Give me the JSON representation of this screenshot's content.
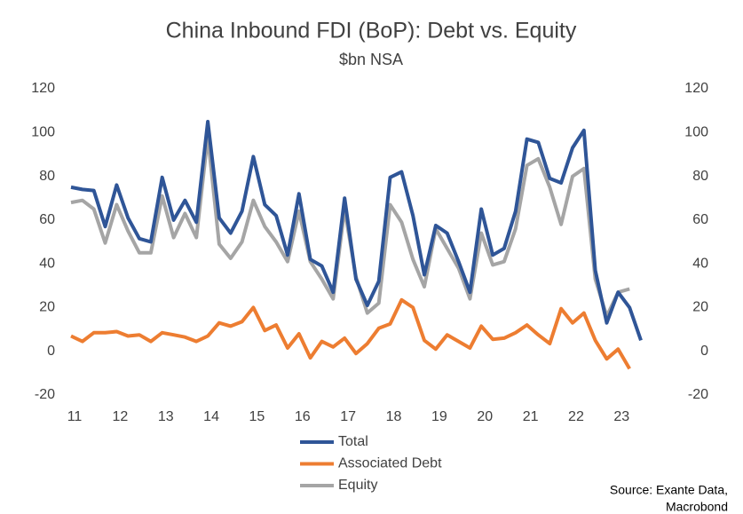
{
  "chart_data": {
    "type": "line",
    "title": "China Inbound FDI (BoP): Debt vs. Equity",
    "subtitle": "$bn NSA",
    "source": [
      "Source: Exante Data,",
      "Macrobond"
    ],
    "categories": [
      "11",
      null,
      null,
      null,
      "12",
      null,
      null,
      null,
      "13",
      null,
      null,
      null,
      "14",
      null,
      null,
      null,
      "15",
      null,
      null,
      null,
      "16",
      null,
      null,
      null,
      "17",
      null,
      null,
      null,
      "18",
      null,
      null,
      null,
      "19",
      null,
      null,
      null,
      "20",
      null,
      null,
      null,
      "21",
      null,
      null,
      null,
      "22",
      null,
      null,
      null,
      "23",
      null,
      null
    ],
    "series": [
      {
        "name": "Total",
        "color": "#2f5597",
        "values": [
          75,
          74,
          73.5,
          57,
          76,
          61,
          51.5,
          50,
          79.5,
          60,
          69,
          59,
          105,
          61,
          54,
          64,
          89,
          67,
          62,
          44,
          72,
          42,
          39,
          27,
          70,
          33,
          21,
          32,
          79.5,
          82,
          62,
          35,
          57.5,
          54,
          41,
          27,
          65,
          44,
          47,
          64,
          97,
          95.5,
          79,
          77,
          93,
          101,
          37,
          13,
          27,
          20,
          5
        ]
      },
      {
        "name": "Associated Debt",
        "color": "#ed7d31",
        "values": [
          7,
          4.5,
          8.5,
          8.5,
          9,
          7,
          7.5,
          4.5,
          8.5,
          7.5,
          6.5,
          4.5,
          7,
          13,
          11.5,
          13.5,
          20,
          9.5,
          12,
          1.5,
          8,
          -3,
          4.5,
          2,
          6,
          -1,
          3.5,
          10.5,
          12.5,
          23.5,
          20,
          5,
          1,
          7.5,
          4.5,
          1.5,
          11.5,
          5.5,
          6,
          8.5,
          12,
          7.5,
          3.5,
          19.5,
          13,
          17.5,
          5,
          -3.5,
          1,
          -8,
          null
        ]
      },
      {
        "name": "Equity",
        "color": "#a5a5a5",
        "values": [
          68,
          69,
          65,
          49.5,
          67,
          55,
          45,
          45,
          71,
          52,
          63,
          52,
          98,
          49,
          42.5,
          50,
          69,
          57,
          50,
          41,
          64,
          41,
          33,
          24,
          65,
          34,
          17.5,
          22,
          67,
          59,
          42,
          29.5,
          56,
          47,
          38,
          24,
          54,
          39.5,
          41,
          56,
          85,
          88,
          75,
          58,
          80,
          83.5,
          33,
          16,
          27,
          28.5,
          null
        ]
      }
    ],
    "ylim": [
      -20,
      120
    ],
    "yticks": [
      -20,
      0,
      20,
      40,
      60,
      80,
      100,
      120
    ],
    "y2lim": [
      -20,
      120
    ],
    "y2ticks": [
      -20,
      0,
      20,
      40,
      60,
      80,
      100,
      120
    ],
    "grid": false
  }
}
